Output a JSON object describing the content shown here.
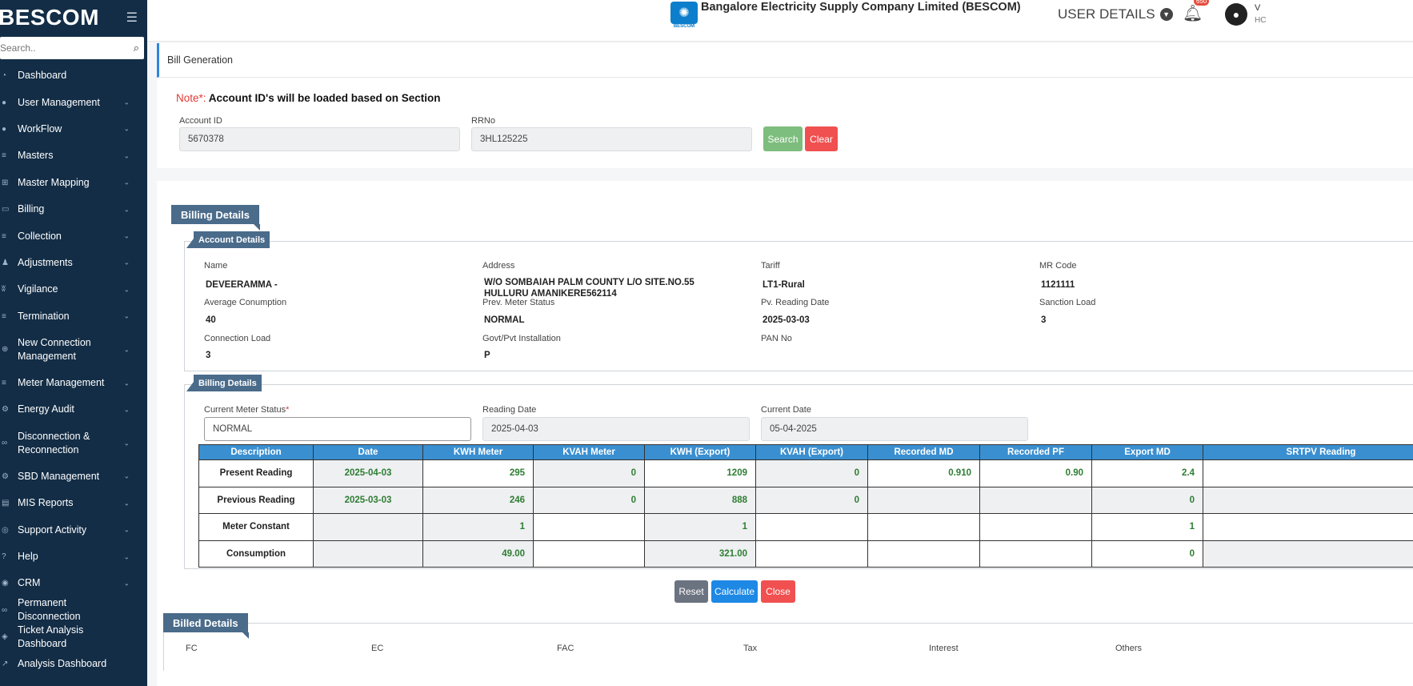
{
  "sidebar": {
    "logo": "BESCOM",
    "search_placeholder": "Search..",
    "items": [
      {
        "label": "Dashboard",
        "icon": "dashboard-icon",
        "chev": false
      },
      {
        "label": "User Management",
        "icon": "user-icon",
        "chev": true
      },
      {
        "label": "WorkFlow",
        "icon": "user-icon",
        "chev": true
      },
      {
        "label": "Masters",
        "icon": "list-icon",
        "chev": true
      },
      {
        "label": "Master Mapping",
        "icon": "sitemap-icon",
        "chev": true
      },
      {
        "label": "Billing",
        "icon": "monitor-icon",
        "chev": true
      },
      {
        "label": "Collection",
        "icon": "list-icon",
        "chev": true
      },
      {
        "label": "Adjustments",
        "icon": "users-icon",
        "chev": true
      },
      {
        "label": "Vigilance",
        "icon": "vk-icon",
        "chev": true
      },
      {
        "label": "Termination",
        "icon": "list-icon",
        "chev": true
      },
      {
        "label": "New Connection Management",
        "icon": "plus-circle-icon",
        "chev": true,
        "tall": true
      },
      {
        "label": "Meter Management",
        "icon": "list-icon",
        "chev": true
      },
      {
        "label": "Energy Audit",
        "icon": "cogs-icon",
        "chev": true
      },
      {
        "label": "Disconnection & Reconnection",
        "icon": "link-icon",
        "chev": true,
        "tall": true
      },
      {
        "label": "SBD Management",
        "icon": "gear-icon",
        "chev": true
      },
      {
        "label": "MIS Reports",
        "icon": "file-icon",
        "chev": true
      },
      {
        "label": "Support Activity",
        "icon": "support-icon",
        "chev": true
      },
      {
        "label": "Help",
        "icon": "help-icon",
        "chev": true
      },
      {
        "label": "CRM",
        "icon": "crm-icon",
        "chev": true
      },
      {
        "label": "Permanent Disconnection",
        "icon": "link-icon",
        "chev": false
      },
      {
        "label": "Ticket Analysis Dashboard",
        "icon": "ticket-icon",
        "chev": false
      },
      {
        "label": "Analysis Dashboard",
        "icon": "chart-icon",
        "chev": false
      }
    ]
  },
  "header": {
    "title": "Bangalore Electricity Supply Company Limited (BESCOM)",
    "logo_text": "BESCOM",
    "user_details": "USER DETAILS",
    "notification_count": "650",
    "user_name": "V",
    "user_role": "HC"
  },
  "breadcrumb": "Bill Generation",
  "search": {
    "note_prefix": "Note*:",
    "note_text": " Account ID's will be loaded based on Section",
    "account_id_label": "Account ID",
    "account_id_value": "5670378",
    "rrno_label": "RRNo",
    "rrno_value": "3HL125225",
    "search_label": "Search",
    "clear_label": "Clear"
  },
  "billing_details_title": "Billing Details",
  "account": {
    "title": "Account Details",
    "name_label": "Name",
    "name_value": "DEVEERAMMA -",
    "address_label": "Address",
    "address_value": "W/O SOMBAIAH PALM COUNTY L/O SITE.NO.55 HULLURU AMANIKERE562114",
    "tariff_label": "Tariff",
    "tariff_value": "LT1-Rural",
    "mr_code_label": "MR Code",
    "mr_code_value": "1121111",
    "avg_label": "Average Conumption",
    "avg_value": "40",
    "prev_meter_label": "Prev. Meter Status",
    "prev_meter_value": "NORMAL",
    "pv_date_label": "Pv. Reading Date",
    "pv_date_value": "2025-03-03",
    "sanction_label": "Sanction Load",
    "sanction_value": "3",
    "conn_load_label": "Connection Load",
    "conn_load_value": "3",
    "govt_label": "Govt/Pvt Installation",
    "govt_value": "P",
    "pan_label": "PAN No",
    "pan_value": ""
  },
  "billing": {
    "title": "Billing Details",
    "meter_status_label": "Current Meter Status",
    "meter_status_value": "NORMAL",
    "reading_date_label": "Reading Date",
    "reading_date_value": "2025-04-03",
    "current_date_label": "Current Date",
    "current_date_value": "05-04-2025"
  },
  "table": {
    "headers": [
      "Description",
      "Date",
      "KWH Meter",
      "KVAH Meter",
      "KWH (Export)",
      "KVAH (Export)",
      "Recorded MD",
      "Recorded PF",
      "Export MD",
      "SRTPV Reading"
    ],
    "rows": [
      {
        "desc": "Present Reading",
        "cells": [
          "2025-04-03",
          "295",
          "0",
          "1209",
          "0",
          "0.910",
          "0.90",
          "2.4",
          ""
        ]
      },
      {
        "desc": "Previous Reading",
        "cells": [
          "2025-03-03",
          "246",
          "0",
          "888",
          "0",
          "",
          "",
          "0",
          ""
        ]
      },
      {
        "desc": "Meter Constant",
        "cells": [
          "",
          "1",
          "",
          "1",
          "",
          "",
          "",
          "1",
          ""
        ]
      },
      {
        "desc": "Consumption",
        "cells": [
          "",
          "49.00",
          "",
          "321.00",
          "",
          "",
          "",
          "0",
          ""
        ]
      }
    ]
  },
  "actions": {
    "reset": "Reset",
    "calculate": "Calculate",
    "close": "Close"
  },
  "billed": {
    "title": "Billed Details",
    "labels": [
      "FC",
      "EC",
      "FAC",
      "Tax",
      "Interest",
      "Others"
    ]
  },
  "colors": {
    "sidebar_bg": "#132d46",
    "table_header": "#3a8fd0",
    "tab_label": "#4a6b8a",
    "value_green": "#2e7d32"
  }
}
